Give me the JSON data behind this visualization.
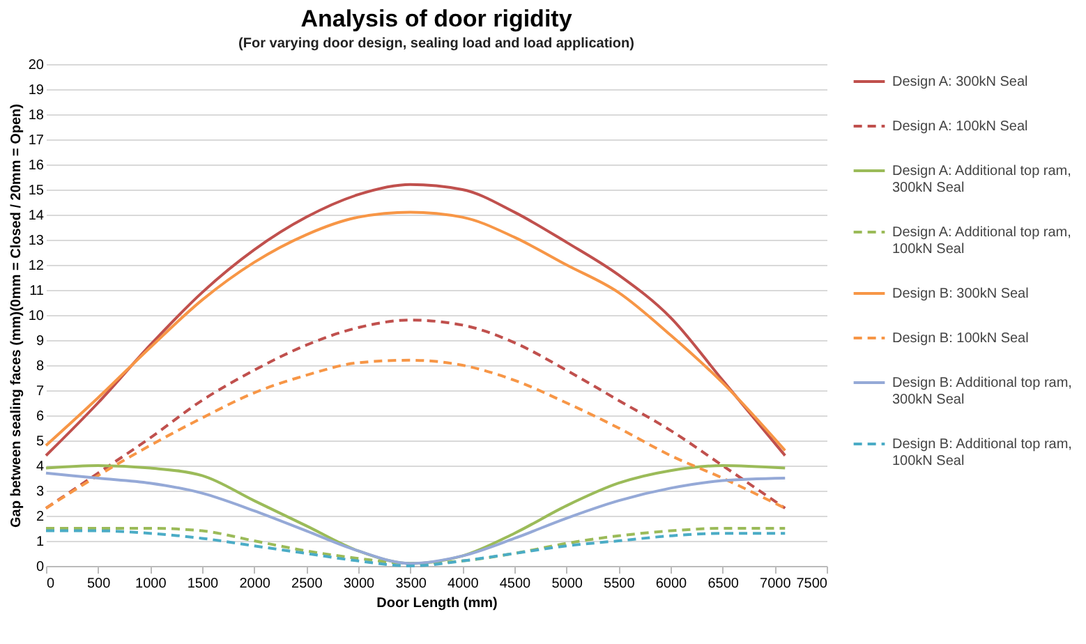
{
  "chart_data": {
    "type": "line",
    "title": "Analysis of door rigidity",
    "subtitle": "(For varying door design, sealing load and load application)",
    "xlabel": "Door Length (mm)",
    "ylabel": "Gap between sealing faces (mm)(0mm = Closed / 20mm = Open)",
    "x": [
      0,
      500,
      1000,
      1500,
      2000,
      2500,
      3000,
      3500,
      4000,
      4500,
      5000,
      5500,
      6000,
      6500,
      7100
    ],
    "xlim": [
      0,
      7500
    ],
    "xticks": [
      0,
      500,
      1000,
      1500,
      2000,
      2500,
      3000,
      3500,
      4000,
      4500,
      5000,
      5500,
      6000,
      6500,
      7000,
      7500
    ],
    "ylim": [
      0,
      20
    ],
    "yticks": [
      0,
      1,
      2,
      3,
      4,
      5,
      6,
      7,
      8,
      9,
      10,
      11,
      12,
      13,
      14,
      15,
      16,
      17,
      18,
      19,
      20
    ],
    "grid": "y",
    "legend": "right",
    "marker": "none",
    "series": [
      {
        "name": "Design A: 300kN Seal",
        "color": "#c0504d",
        "line_style": "solid",
        "values": [
          4.4,
          6.5,
          8.8,
          10.9,
          12.6,
          13.9,
          14.8,
          15.2,
          15.0,
          14.1,
          12.9,
          11.6,
          9.9,
          7.4,
          4.4
        ]
      },
      {
        "name": "Design A: 100kN Seal",
        "color": "#c0504d",
        "line_style": "dashed",
        "values": [
          2.3,
          3.7,
          5.1,
          6.6,
          7.8,
          8.8,
          9.5,
          9.8,
          9.6,
          8.9,
          7.8,
          6.6,
          5.4,
          4.0,
          2.3
        ]
      },
      {
        "name": "Design A: Additional top ram, 300kN Seal",
        "color": "#9bbb59",
        "line_style": "solid",
        "values": [
          3.9,
          4.0,
          3.9,
          3.6,
          2.6,
          1.6,
          0.6,
          0.1,
          0.4,
          1.3,
          2.4,
          3.3,
          3.8,
          4.0,
          3.9
        ]
      },
      {
        "name": "Design A: Additional top ram, 100kN Seal",
        "color": "#9bbb59",
        "line_style": "dashed",
        "values": [
          1.5,
          1.5,
          1.5,
          1.4,
          1.0,
          0.6,
          0.3,
          0.1,
          0.2,
          0.5,
          0.9,
          1.2,
          1.4,
          1.5,
          1.5
        ]
      },
      {
        "name": "Design B: 300kN Seal",
        "color": "#f79646",
        "line_style": "solid",
        "values": [
          4.8,
          6.7,
          8.7,
          10.6,
          12.1,
          13.2,
          13.9,
          14.1,
          13.9,
          13.1,
          12.0,
          10.9,
          9.2,
          7.3,
          4.6
        ]
      },
      {
        "name": "Design B: 100kN Seal",
        "color": "#f79646",
        "line_style": "dashed",
        "values": [
          2.3,
          3.6,
          4.8,
          5.9,
          6.9,
          7.6,
          8.1,
          8.2,
          8.0,
          7.4,
          6.5,
          5.5,
          4.4,
          3.5,
          2.3
        ]
      },
      {
        "name": "Design B: Additional top ram, 300kN Seal",
        "color": "#95a9d7",
        "line_style": "solid",
        "values": [
          3.7,
          3.5,
          3.3,
          2.9,
          2.2,
          1.4,
          0.6,
          0.1,
          0.4,
          1.1,
          1.9,
          2.6,
          3.1,
          3.4,
          3.5
        ]
      },
      {
        "name": "Design B: Additional top ram, 100kN Seal",
        "color": "#4bacc6",
        "line_style": "dashed",
        "values": [
          1.4,
          1.4,
          1.3,
          1.1,
          0.8,
          0.5,
          0.2,
          0.0,
          0.2,
          0.5,
          0.8,
          1.0,
          1.2,
          1.3,
          1.3
        ]
      }
    ]
  }
}
